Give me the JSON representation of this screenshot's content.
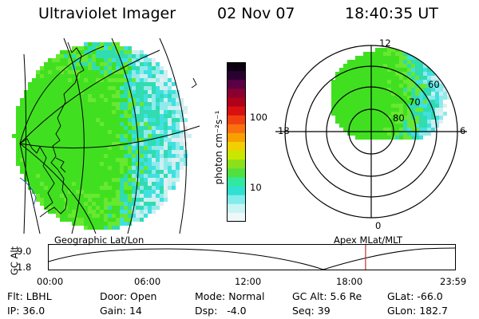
{
  "header": {
    "instrument": "Ultraviolet Imager",
    "date": "02 Nov 07",
    "time": "18:40:35 UT"
  },
  "colorbar": {
    "unit_label": "photon cm⁻²s⁻¹",
    "ticks": [
      "100",
      "10"
    ],
    "colors": [
      "#0a0010",
      "#2a0030",
      "#5a0045",
      "#8a0030",
      "#b0001a",
      "#d81010",
      "#f04010",
      "#f87010",
      "#f8a000",
      "#f0d000",
      "#c8e800",
      "#8ce01a",
      "#50e040",
      "#30e8a0",
      "#30e0d0",
      "#80ecec",
      "#c8f4f4",
      "#eef8f8"
    ]
  },
  "polar_plot": {
    "mlt_labels": [
      "12",
      "18",
      "6",
      "0"
    ],
    "lat_labels": [
      "60",
      "70",
      "80"
    ]
  },
  "timeline": {
    "left_label": "Geographic Lat/Lon",
    "right_label": "Apex MLat/MLT",
    "axis_title": "GC Alt",
    "y_ticks": [
      "9.0",
      "1.8"
    ],
    "x_ticks": [
      "00:00",
      "06:00",
      "12:00",
      "18:00",
      "23:59"
    ],
    "current_time_hours": 18.68
  },
  "info": {
    "filter": {
      "label": "Flt:",
      "value": "LBHL"
    },
    "ip": {
      "label": "IP:",
      "value": "36.0"
    },
    "door": {
      "label": "Door:",
      "value": "Open"
    },
    "gain": {
      "label": "Gain:",
      "value": "14"
    },
    "mode": {
      "label": "Mode:",
      "value": "Normal"
    },
    "dsp": {
      "label": "Dsp:",
      "value": "-4.0"
    },
    "gc_alt": {
      "label": "GC Alt:",
      "value": "5.6 Re"
    },
    "seq": {
      "label": "Seq:",
      "value": "39"
    },
    "glat": {
      "label": "GLat:",
      "value": "-66.0"
    },
    "glon": {
      "label": "GLon:",
      "value": "182.7"
    }
  },
  "colors": {
    "accent_line": "#c03030",
    "aurora_green": "#50e040",
    "aurora_cyan": "#30e0d0"
  }
}
